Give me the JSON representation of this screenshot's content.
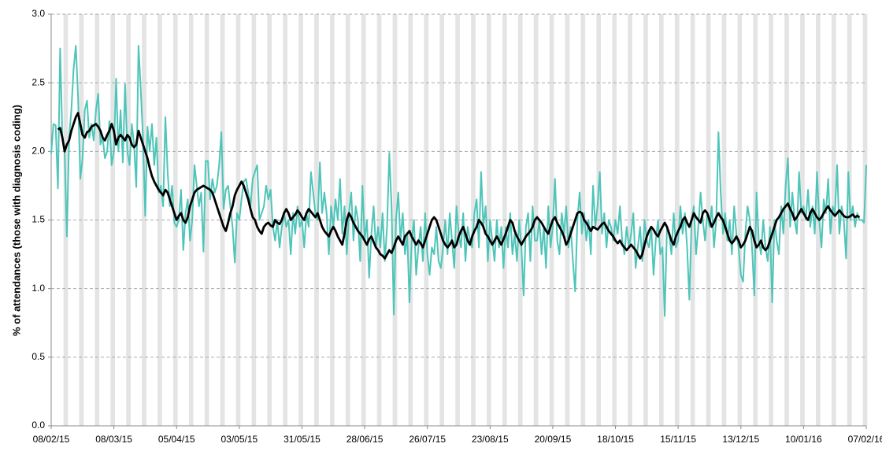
{
  "chart_data": {
    "type": "line",
    "y_label": "% of attendances (those with diagnosis coding)",
    "categories": [
      "08/02/15",
      null,
      null,
      null,
      null,
      null,
      null,
      null,
      null,
      null,
      null,
      null,
      null,
      null,
      null,
      null,
      null,
      null,
      null,
      null,
      null,
      null,
      null,
      null,
      null,
      null,
      null,
      null,
      "08/03/15",
      null,
      null,
      null,
      null,
      null,
      null,
      null,
      null,
      null,
      null,
      null,
      null,
      null,
      null,
      null,
      null,
      null,
      null,
      null,
      null,
      null,
      null,
      null,
      null,
      null,
      null,
      null,
      "05/04/15",
      null,
      null,
      null,
      null,
      null,
      null,
      null,
      null,
      null,
      null,
      null,
      null,
      null,
      null,
      null,
      null,
      null,
      null,
      null,
      null,
      null,
      null,
      null,
      null,
      null,
      null,
      null,
      "03/05/15",
      null,
      null,
      null,
      null,
      null,
      null,
      null,
      null,
      null,
      null,
      null,
      null,
      null,
      null,
      null,
      null,
      null,
      null,
      null,
      null,
      null,
      null,
      null,
      null,
      null,
      null,
      null,
      "31/05/15",
      null,
      null,
      null,
      null,
      null,
      null,
      null,
      null,
      null,
      null,
      null,
      null,
      null,
      null,
      null,
      null,
      null,
      null,
      null,
      null,
      null,
      null,
      null,
      null,
      null,
      null,
      null,
      "28/06/15",
      null,
      null,
      null,
      null,
      null,
      null,
      null,
      null,
      null,
      null,
      null,
      null,
      null,
      null,
      null,
      null,
      null,
      null,
      null,
      null,
      null,
      null,
      null,
      null,
      null,
      null,
      null,
      "26/07/15",
      null,
      null,
      null,
      null,
      null,
      null,
      null,
      null,
      null,
      null,
      null,
      null,
      null,
      null,
      null,
      null,
      null,
      null,
      null,
      null,
      null,
      null,
      null,
      null,
      null,
      null,
      null,
      "23/08/15",
      null,
      null,
      null,
      null,
      null,
      null,
      null,
      null,
      null,
      null,
      null,
      null,
      null,
      null,
      null,
      null,
      null,
      null,
      null,
      null,
      null,
      null,
      null,
      null,
      null,
      null,
      null,
      "20/09/15",
      null,
      null,
      null,
      null,
      null,
      null,
      null,
      null,
      null,
      null,
      null,
      null,
      null,
      null,
      null,
      null,
      null,
      null,
      null,
      null,
      null,
      null,
      null,
      null,
      null,
      null,
      null,
      "18/10/15",
      null,
      null,
      null,
      null,
      null,
      null,
      null,
      null,
      null,
      null,
      null,
      null,
      null,
      null,
      null,
      null,
      null,
      null,
      null,
      null,
      null,
      null,
      null,
      null,
      null,
      null,
      null,
      "15/11/15",
      null,
      null,
      null,
      null,
      null,
      null,
      null,
      null,
      null,
      null,
      null,
      null,
      null,
      null,
      null,
      null,
      null,
      null,
      null,
      null,
      null,
      null,
      null,
      null,
      null,
      null,
      null,
      "13/12/15",
      null,
      null,
      null,
      null,
      null,
      null,
      null,
      null,
      null,
      null,
      null,
      null,
      null,
      null,
      null,
      null,
      null,
      null,
      null,
      null,
      null,
      null,
      null,
      null,
      null,
      null,
      null,
      "10/01/16",
      null,
      null,
      null,
      null,
      null,
      null,
      null,
      null,
      null,
      null,
      null,
      null,
      null,
      null,
      null,
      null,
      null,
      null,
      null,
      null,
      null,
      null,
      null,
      null,
      null,
      null,
      null,
      "07/02/16"
    ],
    "series": [
      {
        "color": "#4fc5b9",
        "values": [
          1.98,
          2.2,
          2.19,
          1.73,
          2.75,
          2.1,
          2.0,
          1.38,
          2.1,
          2.3,
          2.6,
          2.77,
          2.4,
          1.8,
          1.95,
          2.3,
          2.37,
          2.1,
          2.2,
          2.08,
          2.3,
          2.42,
          2.05,
          2.1,
          1.95,
          2.0,
          2.22,
          1.9,
          2.0,
          2.53,
          2.0,
          2.3,
          1.92,
          2.49,
          2.0,
          1.9,
          2.2,
          2.05,
          1.74,
          2.77,
          2.45,
          2.1,
          1.53,
          2.18,
          2.0,
          2.2,
          1.9,
          2.1,
          1.7,
          1.75,
          1.6,
          2.25,
          1.85,
          1.6,
          1.75,
          1.48,
          1.45,
          1.5,
          1.72,
          1.28,
          1.55,
          1.65,
          1.35,
          1.5,
          1.9,
          1.75,
          1.6,
          1.7,
          1.27,
          1.93,
          1.93,
          1.65,
          1.8,
          1.7,
          1.75,
          1.9,
          2.14,
          1.58,
          1.72,
          1.75,
          1.6,
          1.45,
          1.19,
          1.55,
          1.5,
          1.65,
          1.78,
          1.8,
          1.7,
          1.6,
          1.8,
          1.85,
          1.9,
          1.5,
          1.55,
          1.6,
          1.75,
          1.65,
          1.72,
          1.45,
          1.35,
          1.5,
          1.3,
          1.45,
          1.55,
          1.45,
          1.5,
          1.25,
          1.55,
          1.4,
          1.6,
          1.45,
          1.5,
          1.3,
          1.55,
          1.45,
          1.85,
          1.7,
          1.55,
          1.5,
          1.92,
          1.55,
          1.7,
          1.55,
          1.25,
          1.6,
          1.45,
          1.65,
          1.5,
          1.8,
          1.4,
          1.6,
          1.25,
          1.55,
          1.7,
          1.35,
          1.6,
          1.5,
          1.2,
          1.75,
          1.35,
          1.5,
          1.08,
          1.4,
          1.6,
          1.3,
          1.45,
          1.3,
          1.55,
          1.2,
          1.45,
          1.99,
          1.6,
          0.81,
          1.5,
          1.7,
          1.35,
          1.55,
          1.25,
          1.4,
          0.9,
          1.35,
          1.5,
          1.1,
          1.3,
          1.45,
          1.2,
          1.55,
          1.25,
          1.1,
          1.3,
          1.25,
          1.45,
          1.2,
          1.15,
          1.3,
          1.5,
          1.25,
          1.55,
          1.35,
          1.15,
          1.6,
          1.4,
          1.3,
          1.55,
          1.2,
          1.45,
          1.35,
          1.3,
          1.55,
          1.65,
          1.3,
          1.85,
          1.45,
          1.6,
          1.2,
          1.5,
          1.35,
          1.2,
          1.5,
          1.3,
          1.45,
          1.15,
          1.45,
          1.3,
          1.55,
          1.25,
          1.4,
          1.2,
          1.5,
          1.3,
          0.95,
          1.45,
          1.55,
          1.2,
          1.6,
          1.35,
          1.35,
          1.5,
          1.25,
          1.45,
          1.15,
          1.6,
          1.3,
          1.45,
          1.8,
          1.35,
          1.25,
          1.55,
          1.4,
          1.6,
          1.3,
          1.45,
          1.2,
          0.98,
          1.5,
          1.7,
          1.4,
          1.55,
          1.35,
          1.5,
          1.25,
          1.75,
          1.45,
          1.6,
          1.85,
          1.4,
          1.55,
          1.3,
          1.5,
          1.45,
          1.35,
          1.5,
          1.4,
          1.6,
          1.35,
          1.25,
          1.45,
          1.3,
          1.4,
          1.55,
          1.15,
          1.3,
          1.45,
          1.2,
          1.5,
          1.35,
          1.3,
          1.45,
          1.1,
          1.35,
          1.5,
          1.25,
          1.3,
          0.8,
          1.45,
          1.4,
          1.25,
          1.55,
          1.3,
          1.35,
          1.6,
          1.4,
          1.55,
          1.3,
          0.92,
          1.5,
          1.6,
          1.25,
          1.45,
          1.7,
          1.5,
          1.35,
          1.55,
          1.45,
          1.6,
          1.3,
          1.5,
          2.14,
          1.7,
          1.4,
          1.55,
          1.35,
          1.5,
          1.25,
          1.6,
          1.4,
          1.3,
          1.1,
          1.05,
          1.4,
          1.6,
          1.5,
          1.3,
          0.95,
          1.7,
          1.35,
          1.25,
          1.5,
          1.3,
          1.2,
          1.45,
          0.9,
          1.5,
          1.35,
          1.25,
          1.6,
          1.4,
          1.75,
          1.95,
          1.45,
          1.7,
          1.5,
          1.4,
          1.85,
          1.55,
          1.6,
          1.5,
          1.72,
          1.45,
          1.6,
          1.4,
          1.85,
          1.5,
          1.3,
          1.65,
          1.55,
          1.8,
          1.4,
          1.6,
          1.55,
          1.9,
          1.4,
          1.6,
          1.5,
          1.22,
          1.85,
          1.5,
          1.6,
          1.45,
          1.55,
          1.5,
          1.5,
          1.48,
          1.9
        ]
      },
      {
        "color": "#000000",
        "values": [
          null,
          null,
          null,
          2.16,
          2.17,
          2.1,
          2.0,
          2.05,
          2.08,
          2.15,
          2.2,
          2.25,
          2.28,
          2.2,
          2.12,
          2.1,
          2.14,
          2.15,
          2.18,
          2.19,
          2.2,
          2.18,
          2.15,
          2.1,
          2.08,
          2.12,
          2.15,
          2.2,
          2.15,
          2.05,
          2.1,
          2.12,
          2.1,
          2.08,
          2.12,
          2.1,
          2.05,
          2.03,
          2.05,
          2.15,
          2.1,
          2.05,
          2.0,
          1.95,
          1.88,
          1.82,
          1.78,
          1.75,
          1.72,
          1.7,
          1.68,
          1.72,
          1.7,
          1.65,
          1.6,
          1.55,
          1.5,
          1.53,
          1.55,
          1.5,
          1.48,
          1.52,
          1.6,
          1.65,
          1.7,
          1.72,
          1.73,
          1.74,
          1.75,
          1.74,
          1.73,
          1.72,
          1.7,
          1.65,
          1.6,
          1.55,
          1.5,
          1.45,
          1.42,
          1.48,
          1.55,
          1.6,
          1.68,
          1.72,
          1.75,
          1.78,
          1.75,
          1.7,
          1.65,
          1.58,
          1.52,
          1.5,
          1.45,
          1.42,
          1.4,
          1.45,
          1.47,
          1.48,
          1.46,
          1.45,
          1.5,
          1.48,
          1.47,
          1.5,
          1.55,
          1.58,
          1.55,
          1.5,
          1.52,
          1.54,
          1.57,
          1.55,
          1.52,
          1.5,
          1.55,
          1.58,
          1.56,
          1.54,
          1.52,
          1.55,
          1.5,
          1.45,
          1.42,
          1.4,
          1.38,
          1.42,
          1.45,
          1.42,
          1.38,
          1.35,
          1.32,
          1.4,
          1.5,
          1.55,
          1.52,
          1.48,
          1.45,
          1.42,
          1.4,
          1.38,
          1.35,
          1.32,
          1.36,
          1.38,
          1.34,
          1.3,
          1.28,
          1.25,
          1.24,
          1.22,
          1.25,
          1.28,
          1.26,
          1.3,
          1.35,
          1.38,
          1.35,
          1.32,
          1.38,
          1.4,
          1.42,
          1.38,
          1.35,
          1.32,
          1.35,
          1.33,
          1.3,
          1.35,
          1.4,
          1.45,
          1.5,
          1.52,
          1.5,
          1.45,
          1.4,
          1.35,
          1.32,
          1.3,
          1.32,
          1.35,
          1.3,
          1.32,
          1.38,
          1.42,
          1.45,
          1.4,
          1.35,
          1.32,
          1.38,
          1.42,
          1.45,
          1.5,
          1.48,
          1.45,
          1.4,
          1.38,
          1.35,
          1.32,
          1.35,
          1.38,
          1.35,
          1.32,
          1.36,
          1.4,
          1.45,
          1.5,
          1.48,
          1.42,
          1.38,
          1.35,
          1.32,
          1.35,
          1.38,
          1.4,
          1.42,
          1.45,
          1.5,
          1.52,
          1.5,
          1.48,
          1.45,
          1.42,
          1.4,
          1.45,
          1.5,
          1.52,
          1.48,
          1.45,
          1.42,
          1.38,
          1.32,
          1.35,
          1.4,
          1.45,
          1.5,
          1.55,
          1.56,
          1.55,
          1.5,
          1.48,
          1.45,
          1.42,
          1.45,
          1.44,
          1.43,
          1.45,
          1.47,
          1.48,
          1.45,
          1.42,
          1.4,
          1.38,
          1.35,
          1.33,
          1.35,
          1.32,
          1.3,
          1.28,
          1.3,
          1.32,
          1.3,
          1.28,
          1.25,
          1.22,
          1.25,
          1.32,
          1.38,
          1.42,
          1.45,
          1.43,
          1.4,
          1.38,
          1.42,
          1.45,
          1.48,
          1.45,
          1.4,
          1.35,
          1.32,
          1.38,
          1.42,
          1.45,
          1.5,
          1.52,
          1.48,
          1.45,
          1.5,
          1.55,
          1.52,
          1.5,
          1.48,
          1.55,
          1.57,
          1.55,
          1.5,
          1.45,
          1.48,
          1.52,
          1.55,
          1.52,
          1.5,
          1.45,
          1.4,
          1.35,
          1.33,
          1.35,
          1.38,
          1.35,
          1.3,
          1.32,
          1.35,
          1.4,
          1.45,
          1.42,
          1.35,
          1.3,
          1.32,
          1.35,
          1.3,
          1.28,
          1.3,
          1.35,
          1.4,
          1.45,
          1.5,
          1.52,
          1.55,
          1.58,
          1.6,
          1.62,
          1.58,
          1.55,
          1.5,
          1.52,
          1.55,
          1.58,
          1.55,
          1.52,
          1.5,
          1.55,
          1.58,
          1.55,
          1.52,
          1.5,
          1.52,
          1.55,
          1.58,
          1.6,
          1.57,
          1.55,
          1.53,
          1.55,
          1.57,
          1.55,
          1.53,
          1.52,
          1.52,
          1.53,
          1.54,
          1.52,
          1.53,
          1.52,
          null,
          null,
          null
        ]
      }
    ],
    "ylim": [
      0,
      3
    ],
    "yticks": [
      {
        "value": 0,
        "label": "0.0"
      },
      0.5,
      {
        "value": 1,
        "label": "1.0"
      },
      1.5,
      {
        "value": 2,
        "label": "2.0"
      },
      2.5,
      {
        "value": 3,
        "label": "3.0"
      }
    ],
    "grid": true
  }
}
